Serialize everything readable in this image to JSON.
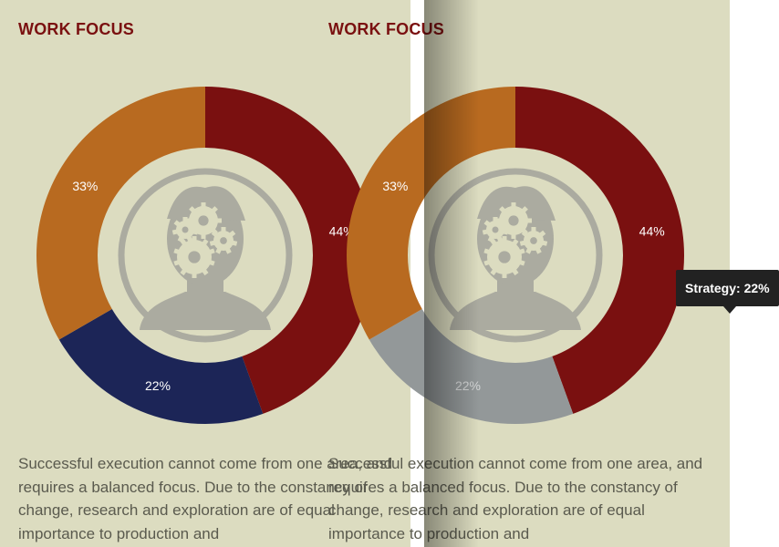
{
  "section_title": "WORK FOCUS",
  "description": "Successful execution cannot come from one area, and requires a balanced focus. Due to the constancy of change, research and exploration are of equal importance to production and",
  "tooltip": {
    "text": "Strategy: 22%"
  },
  "center_icon": "head-with-gears-icon",
  "colors": {
    "background": "#dcdcc0",
    "title": "#7a1010",
    "body_text": "#5a5a4e",
    "slice_1": "#7a1010",
    "slice_2": "#1c2557",
    "slice_3": "#b86a20",
    "slice_hover": "#939899",
    "icon": "#ababa0"
  },
  "chart_data": {
    "type": "pie",
    "style": "donut",
    "labels": [
      "44%",
      "22%",
      "33%"
    ],
    "values": [
      44,
      22,
      33
    ],
    "highlighted_in_right_view": "22%"
  }
}
